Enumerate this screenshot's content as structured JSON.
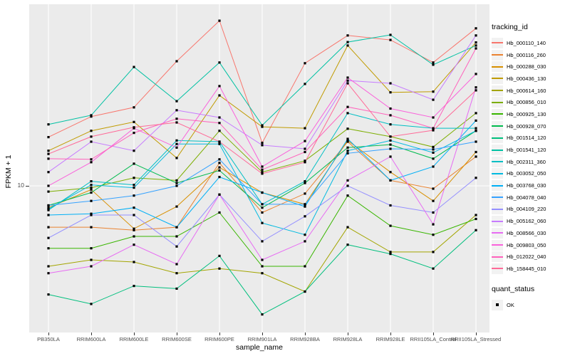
{
  "figure": {
    "panel_bg": "#EBEBEB",
    "grid_color": "#FFFFFF",
    "axis_text_color": "#4D4D4D",
    "point_color": "#000000"
  },
  "legend": {
    "tracking_title": "tracking_id",
    "quant_title": "quant_status",
    "quant_items": [
      {
        "label": "OK",
        "shape": "square",
        "color": "#000000"
      }
    ]
  },
  "chart_data": {
    "type": "line",
    "title": "",
    "xlabel": "sample_name",
    "ylabel": "FPKM + 1",
    "y_scale": "log10",
    "y_ticks": [
      10
    ],
    "y_tick_labels": [
      "10"
    ],
    "ylim_approx": [
      2.1,
      70
    ],
    "grid": "major-on",
    "legend_position": "right",
    "point_shape": "small black square (quant_status OK)",
    "x_categories": [
      "PB350LA",
      "RRIM600LA",
      "RRIM600LE",
      "RRIM600SE",
      "RRIM600PE",
      "RRIM901LA",
      "RRIM928BA",
      "RRIM928LA",
      "RRIM928LE",
      "RRII105LA_Control",
      "RRII105LA_Stressed"
    ],
    "series": [
      {
        "name": "Hb_000110_140",
        "color": "#F8766D",
        "values": [
          16.9,
          21.1,
          23.3,
          38.3,
          59.3,
          15.9,
          37.5,
          50.6,
          48.2,
          37.8,
          54.6
        ]
      },
      {
        "name": "Hb_000116_260",
        "color": "#EA8331",
        "values": [
          6.4,
          6.4,
          6.2,
          6.4,
          12.8,
          7.5,
          9.2,
          16.1,
          10.6,
          9.7,
          13.7
        ]
      },
      {
        "name": "Hb_000288_030",
        "color": "#D89000",
        "values": [
          7.9,
          9.6,
          6.3,
          8.0,
          12.2,
          9.3,
          8.2,
          16.3,
          11.6,
          8.5,
          14.4
        ]
      },
      {
        "name": "Hb_000436_130",
        "color": "#C09B00",
        "values": [
          14.6,
          18.1,
          19.9,
          13.5,
          26.5,
          18.9,
          18.6,
          45.4,
          27.4,
          27.6,
          46.9
        ]
      },
      {
        "name": "Hb_000614_160",
        "color": "#A3A500",
        "values": [
          4.2,
          4.5,
          4.4,
          3.9,
          4.1,
          3.9,
          3.2,
          6.4,
          4.9,
          4.9,
          7.3
        ]
      },
      {
        "name": "Hb_000856_010",
        "color": "#7CAE00",
        "values": [
          9.4,
          9.8,
          10.9,
          10.6,
          18.1,
          11.6,
          13.1,
          18.5,
          17.0,
          15.2,
          21.9
        ]
      },
      {
        "name": "Hb_000925_130",
        "color": "#39B600",
        "values": [
          5.1,
          5.1,
          5.8,
          5.8,
          7.5,
          4.2,
          4.2,
          9.0,
          6.5,
          5.9,
          7.0
        ]
      },
      {
        "name": "Hb_000928_070",
        "color": "#00BB4E",
        "values": [
          8.1,
          9.3,
          12.7,
          10.3,
          11.8,
          7.9,
          10.3,
          15.1,
          15.6,
          13.4,
          18.1
        ]
      },
      {
        "name": "Hb_001514_120",
        "color": "#00BF7D",
        "values": [
          3.1,
          2.8,
          3.4,
          3.3,
          4.7,
          2.5,
          3.2,
          5.3,
          4.8,
          4.1,
          6.2
        ]
      },
      {
        "name": "Hb_001541_120",
        "color": "#00C1A3",
        "values": [
          19.4,
          21.4,
          36.0,
          24.9,
          37.8,
          19.2,
          30.0,
          47.1,
          50.9,
          36.9,
          45.4
        ]
      },
      {
        "name": "Hb_002311_360",
        "color": "#00BFC4",
        "values": [
          7.7,
          10.5,
          10.1,
          16.3,
          16.1,
          8.2,
          10.5,
          21.9,
          19.4,
          18.6,
          18.6
        ]
      },
      {
        "name": "Hb_003052_050",
        "color": "#00BAE0",
        "values": [
          7.8,
          10.1,
          9.8,
          15.7,
          15.7,
          6.7,
          5.9,
          14.6,
          16.3,
          14.3,
          18.1
        ]
      },
      {
        "name": "Hb_003768_030",
        "color": "#00B0F6",
        "values": [
          7.3,
          7.4,
          7.9,
          6.4,
          11.0,
          9.3,
          8.0,
          16.6,
          10.6,
          12.3,
          20.2
        ]
      },
      {
        "name": "Hb_004078_040",
        "color": "#35A2FF",
        "values": [
          8.1,
          8.5,
          9.0,
          10.0,
          13.3,
          8.2,
          8.2,
          14.2,
          14.9,
          14.8,
          16.1
        ]
      },
      {
        "name": "Hb_004109_220",
        "color": "#9590FF",
        "values": [
          5.7,
          7.3,
          7.3,
          5.2,
          9.1,
          5.5,
          7.2,
          10.0,
          8.1,
          7.5,
          10.9
        ]
      },
      {
        "name": "Hb_005162_060",
        "color": "#C77CFF",
        "values": [
          11.6,
          16.1,
          14.6,
          22.6,
          20.9,
          15.5,
          14.9,
          31.1,
          30.2,
          25.3,
          50.6
        ]
      },
      {
        "name": "Hb_008566_030",
        "color": "#E76BF3",
        "values": [
          3.9,
          4.2,
          5.3,
          4.3,
          9.1,
          4.5,
          5.5,
          10.6,
          13.7,
          6.6,
          28.9
        ]
      },
      {
        "name": "Hb_009803_050",
        "color": "#FA62DB",
        "values": [
          10.0,
          12.9,
          18.6,
          15.1,
          29.3,
          12.3,
          16.2,
          32.1,
          23.0,
          20.9,
          33.4
        ]
      },
      {
        "name": "Hb_012022_040",
        "color": "#FF62BC",
        "values": [
          13.4,
          13.3,
          17.7,
          20.6,
          19.7,
          11.9,
          14.4,
          23.4,
          21.4,
          18.6,
          44.0
        ]
      },
      {
        "name": "Hb_158445_010",
        "color": "#FF6A98",
        "values": [
          14.1,
          17.0,
          18.8,
          19.8,
          16.1,
          11.4,
          12.9,
          30.2,
          17.0,
          18.2,
          28.0
        ]
      }
    ]
  }
}
